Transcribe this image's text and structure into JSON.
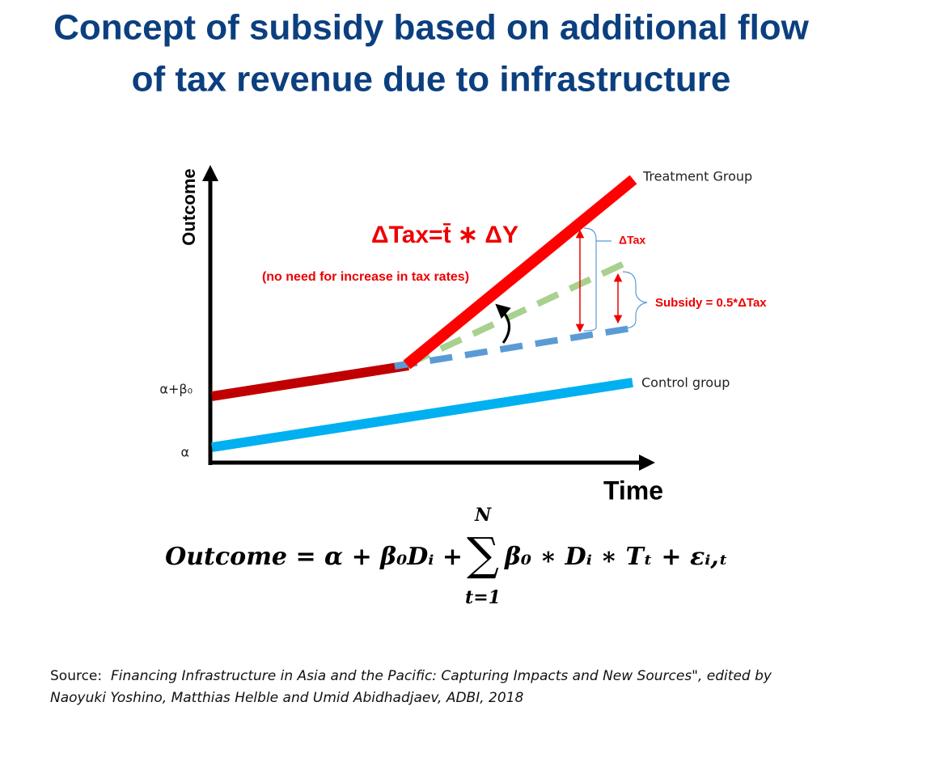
{
  "header": {
    "title": [
      "Concept of subsidy based on additional flow",
      "of tax revenue due to infrastructure"
    ]
  },
  "diagram": {
    "y_axis_label": "Outcome",
    "x_axis_label": "Time",
    "y_labels": [
      "α+β₀",
      "α"
    ],
    "treatment_label": "Treatment Group",
    "control_label": "Control group",
    "formula": "ΔTax=t̄ ∗ ΔY",
    "formula_note": "(no need for increase in tax rates)",
    "delta_tax_label": "ΔTax",
    "subsidy_label": "Subsidy = 0.5*ΔTax"
  },
  "equation": {
    "left": "Outcome = α + β₀Dᵢ +",
    "sum_upper": "N",
    "sum_symbol": "∑",
    "sum_lower": "t=1",
    "right": "β₀ ∗ Dᵢ ∗ Tₜ + εᵢ,ₜ"
  },
  "source": {
    "label": "Source:",
    "lines": [
      "Financing Infrastructure in Asia and the Pacific: Capturing Impacts and New Sources\", edited by",
      "Naoyuki Yoshino, Matthias Helble and Umid Abidhadjaev, ADBI, 2018"
    ]
  }
}
